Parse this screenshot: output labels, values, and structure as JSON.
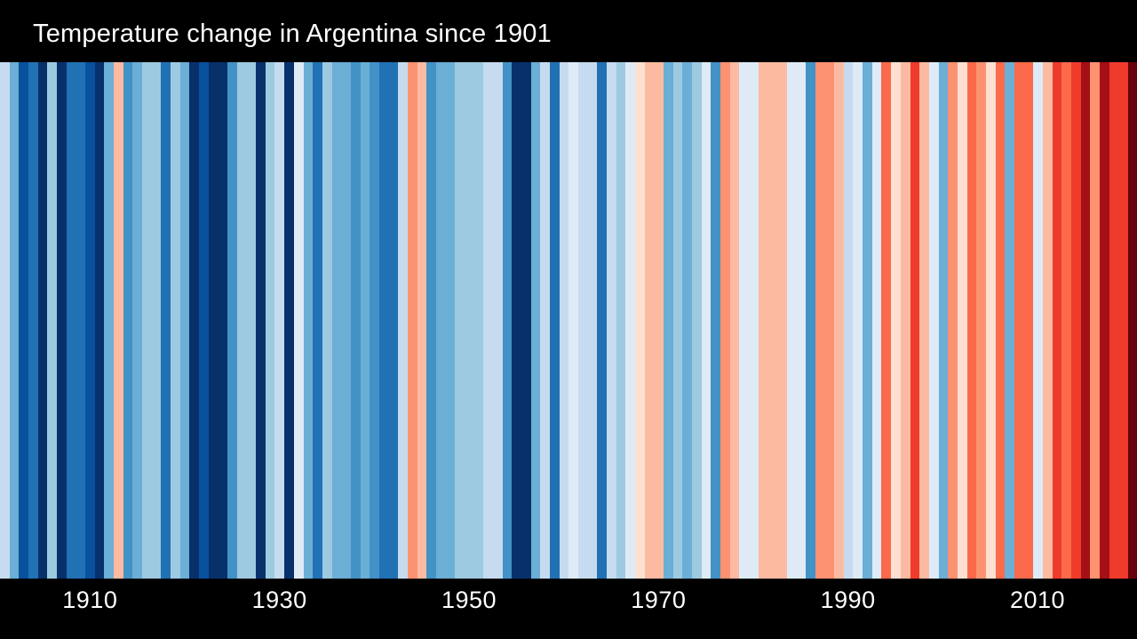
{
  "header": {
    "title": "Temperature change in Argentina since 1901"
  },
  "colors": {
    "background": "#000000",
    "title_text": "#ffffff",
    "axis_text": "#ffffff"
  },
  "chart_data": {
    "type": "heatmap",
    "subtype": "warming-stripes",
    "title": "Temperature change in Argentina since 1901",
    "start_year": 1901,
    "end_year": 2020,
    "x_tick_labels": [
      "1910",
      "1930",
      "1950",
      "1970",
      "1990",
      "2010"
    ],
    "x_tick_years": [
      1910,
      1930,
      1950,
      1970,
      1990,
      2010
    ],
    "legend": "none",
    "gridlines": false,
    "stripe_colors": [
      "#c6dbef",
      "#6baed6",
      "#08519c",
      "#2171b5",
      "#08306b",
      "#9ecae1",
      "#08306b",
      "#2171b5",
      "#2171b5",
      "#08519c",
      "#08306b",
      "#6baed6",
      "#fcbba1",
      "#4292c6",
      "#6baed6",
      "#9ecae1",
      "#9ecae1",
      "#2171b5",
      "#9ecae1",
      "#6baed6",
      "#08306b",
      "#08519c",
      "#08306b",
      "#08306b",
      "#4292c6",
      "#9ecae1",
      "#9ecae1",
      "#08306b",
      "#9ecae1",
      "#c6dbef",
      "#08306b",
      "#deebf7",
      "#6baed6",
      "#2171b5",
      "#9ecae1",
      "#6baed6",
      "#6baed6",
      "#4292c6",
      "#6baed6",
      "#4292c6",
      "#2171b5",
      "#2171b5",
      "#c6dbef",
      "#fc9272",
      "#fcbba1",
      "#4292c6",
      "#6baed6",
      "#6baed6",
      "#9ecae1",
      "#9ecae1",
      "#9ecae1",
      "#c6dbef",
      "#c6dbef",
      "#4292c6",
      "#08306b",
      "#08306b",
      "#6baed6",
      "#c6dbef",
      "#2171b5",
      "#c6dbef",
      "#deebf7",
      "#c6dbef",
      "#c6dbef",
      "#2171b5",
      "#c6dbef",
      "#9ecae1",
      "#deebf7",
      "#fee0d2",
      "#fcbba1",
      "#fcbba1",
      "#6baed6",
      "#9ecae1",
      "#6baed6",
      "#9ecae1",
      "#deebf7",
      "#4292c6",
      "#fc9272",
      "#fcbba1",
      "#deebf7",
      "#deebf7",
      "#fcbba1",
      "#fcbba1",
      "#fcbba1",
      "#deebf7",
      "#deebf7",
      "#4292c6",
      "#fc9272",
      "#fc9272",
      "#fcbba1",
      "#c6dbef",
      "#deebf7",
      "#6baed6",
      "#deebf7",
      "#fb6a4a",
      "#fee0d2",
      "#fcbba1",
      "#ef3b2c",
      "#fcbba1",
      "#deebf7",
      "#6baed6",
      "#fc9272",
      "#fee0d2",
      "#fb6a4a",
      "#fc9272",
      "#fee0d2",
      "#fb6a4a",
      "#6baed6",
      "#fb6a4a",
      "#fb6a4a",
      "#deebf7",
      "#fcbba1",
      "#ef3b2c",
      "#fb6a4a",
      "#ef3b2c",
      "#a50f15",
      "#fc9272",
      "#a50f15",
      "#ef3b2c",
      "#ef3b2c",
      "#67000d"
    ]
  }
}
